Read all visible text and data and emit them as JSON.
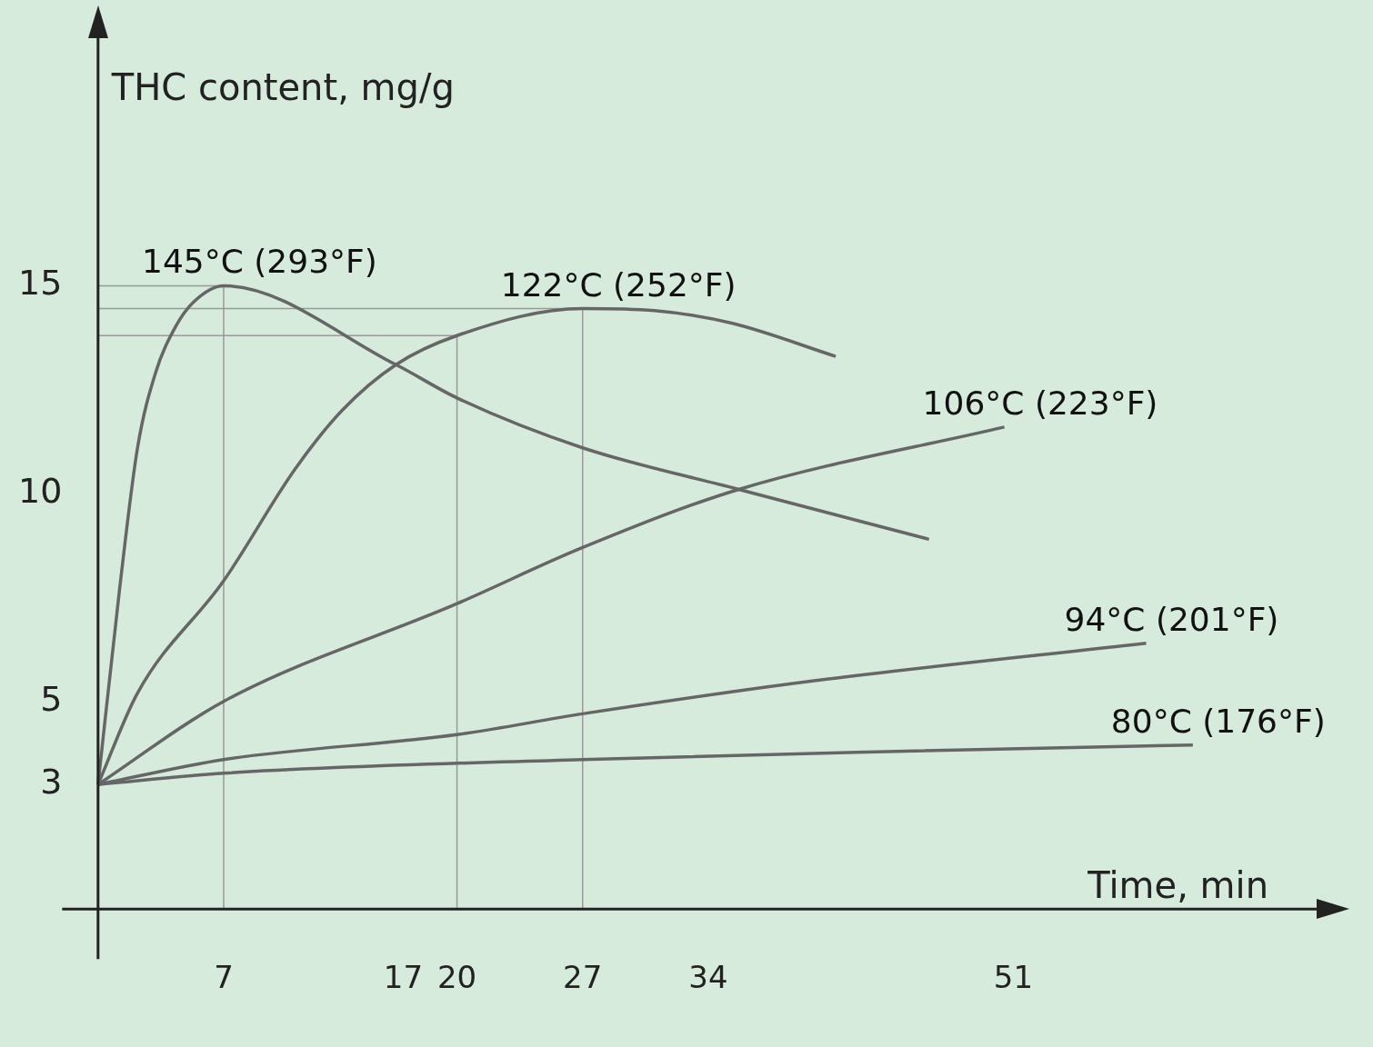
{
  "chart_data": {
    "type": "line",
    "xlabel": "Time, min",
    "ylabel": "THC content, mg/g",
    "xlim": [
      -2,
      68
    ],
    "ylim": [
      -1.2,
      21
    ],
    "xticks": [
      7,
      17,
      20,
      27,
      34,
      51
    ],
    "yticks": [
      3,
      5,
      10,
      15
    ],
    "grid": false,
    "legend": false,
    "marker": "none",
    "line_style": "solid",
    "series": [
      {
        "name": "145°C (293°F)",
        "color": "#666666",
        "x": [
          0,
          1.2,
          2.2,
          3.2,
          4.3,
          5.3,
          7,
          16.6,
          20,
          27,
          35.7,
          46.3
        ],
        "values": [
          3,
          7.7,
          11.1,
          12.9,
          14,
          14.6,
          15,
          13.1,
          12.3,
          11.1,
          10.1,
          8.9
        ]
      },
      {
        "name": "122°C (252°F)",
        "color": "#666666",
        "x": [
          0,
          2.2,
          7,
          11,
          13.6,
          16.6,
          20,
          27,
          31,
          35.3,
          41.1
        ],
        "values": [
          3,
          5.2,
          7.9,
          10.6,
          12,
          13.1,
          13.8,
          14.45,
          14.4,
          14.1,
          13.3
        ]
      },
      {
        "name": "106°C (223°F)",
        "color": "#666666",
        "x": [
          0,
          7,
          20,
          27,
          35.7,
          50.5
        ],
        "values": [
          3,
          5,
          7.35,
          8.7,
          10.1,
          11.6
        ]
      },
      {
        "name": "94°C (201°F)",
        "color": "#666666",
        "x": [
          0,
          7,
          20,
          27,
          40,
          58.4
        ],
        "values": [
          3,
          3.6,
          4.2,
          4.7,
          5.5,
          6.4
        ]
      },
      {
        "name": "80°C (176°F)",
        "color": "#666666",
        "x": [
          0,
          7,
          27,
          45,
          61
        ],
        "values": [
          3,
          3.27,
          3.6,
          3.8,
          3.95
        ]
      },
      {
        "color": "#999999",
        "x": [
          0,
          7,
          7
        ],
        "values": [
          15,
          15,
          0
        ]
      },
      {
        "color": "#999999",
        "x": [
          0,
          27,
          27
        ],
        "values": [
          14.45,
          14.45,
          0
        ]
      },
      {
        "color": "#999999",
        "x": [
          0,
          20,
          20
        ],
        "values": [
          13.8,
          13.8,
          0
        ]
      }
    ]
  }
}
